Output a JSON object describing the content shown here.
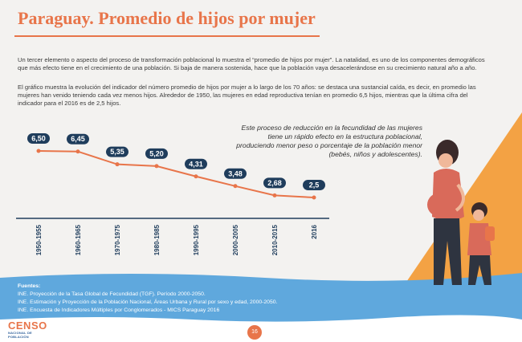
{
  "header": {
    "title": "Paraguay. Promedio de hijos por mujer"
  },
  "intro": {
    "paragraph_1": "Un tercer elemento o aspecto del proceso de transformación poblacional lo muestra el “promedio de hijos por mujer”. La natalidad, es uno de los componentes demográficos que más efecto tiene en el crecimiento de una población. Si baja de manera sostenida, hace que la población vaya desacelerándose en su crecimiento natural año a año.",
    "paragraph_2": "El gráfico muestra la evolución del indicador del número promedio de hijos por mujer a lo largo de los 70 años: se destaca una sustancial caída, es decir, en promedio las mujeres han venido teniendo cada vez menos hijos. Alrededor de 1950, las mujeres en edad reproductiva tenían en promedio 6,5 hijos, mientras que la última cifra del indicador para el 2016 es de 2,5 hijos."
  },
  "quote": "Este proceso de reducción en la fecundidad de las mujeres tiene un rápido efecto en la estructura poblacional, produciendo menor peso o porcentaje de la población menor (bebés, niños y adolescentes).",
  "chart_data": {
    "type": "line",
    "title": "",
    "xlabel": "",
    "ylabel": "",
    "categories": [
      "1950-1955",
      "1960-1965",
      "1970-1975",
      "1980-1985",
      "1990-1995",
      "2000-2005",
      "2010-2015",
      "2016"
    ],
    "values": [
      6.5,
      6.45,
      5.35,
      5.2,
      4.31,
      3.48,
      2.68,
      2.5
    ],
    "data_labels": [
      "6,50",
      "6,45",
      "5,35",
      "5,20",
      "4,31",
      "3,48",
      "2,68",
      "2,5"
    ],
    "ylim": [
      2.2,
      6.8
    ],
    "grid": false,
    "line_color": "#e8754a",
    "label_bg_color": "#1f3d5c"
  },
  "sources": {
    "label": "Fuentes:",
    "items": [
      "INE. Proyección de la Tasa Global de Fecundidad (TGF). Período 2000-2050.",
      "INE. Estimación y Proyección de la Población Nacional, Áreas Urbana y Rural por sexo y edad, 2000-2050.",
      "INE. Encuesta de Indicadores Múltiples por Conglomerados - MICS Paraguay 2016"
    ]
  },
  "logo": {
    "word": "CENSO",
    "sub": "NACIONAL DE POBLACIÓN"
  },
  "page_number": "16",
  "colors": {
    "accent": "#e8754a",
    "footer_blue": "#5fa8dd",
    "navy": "#1f3d5c",
    "mountain": "#f3a244"
  }
}
